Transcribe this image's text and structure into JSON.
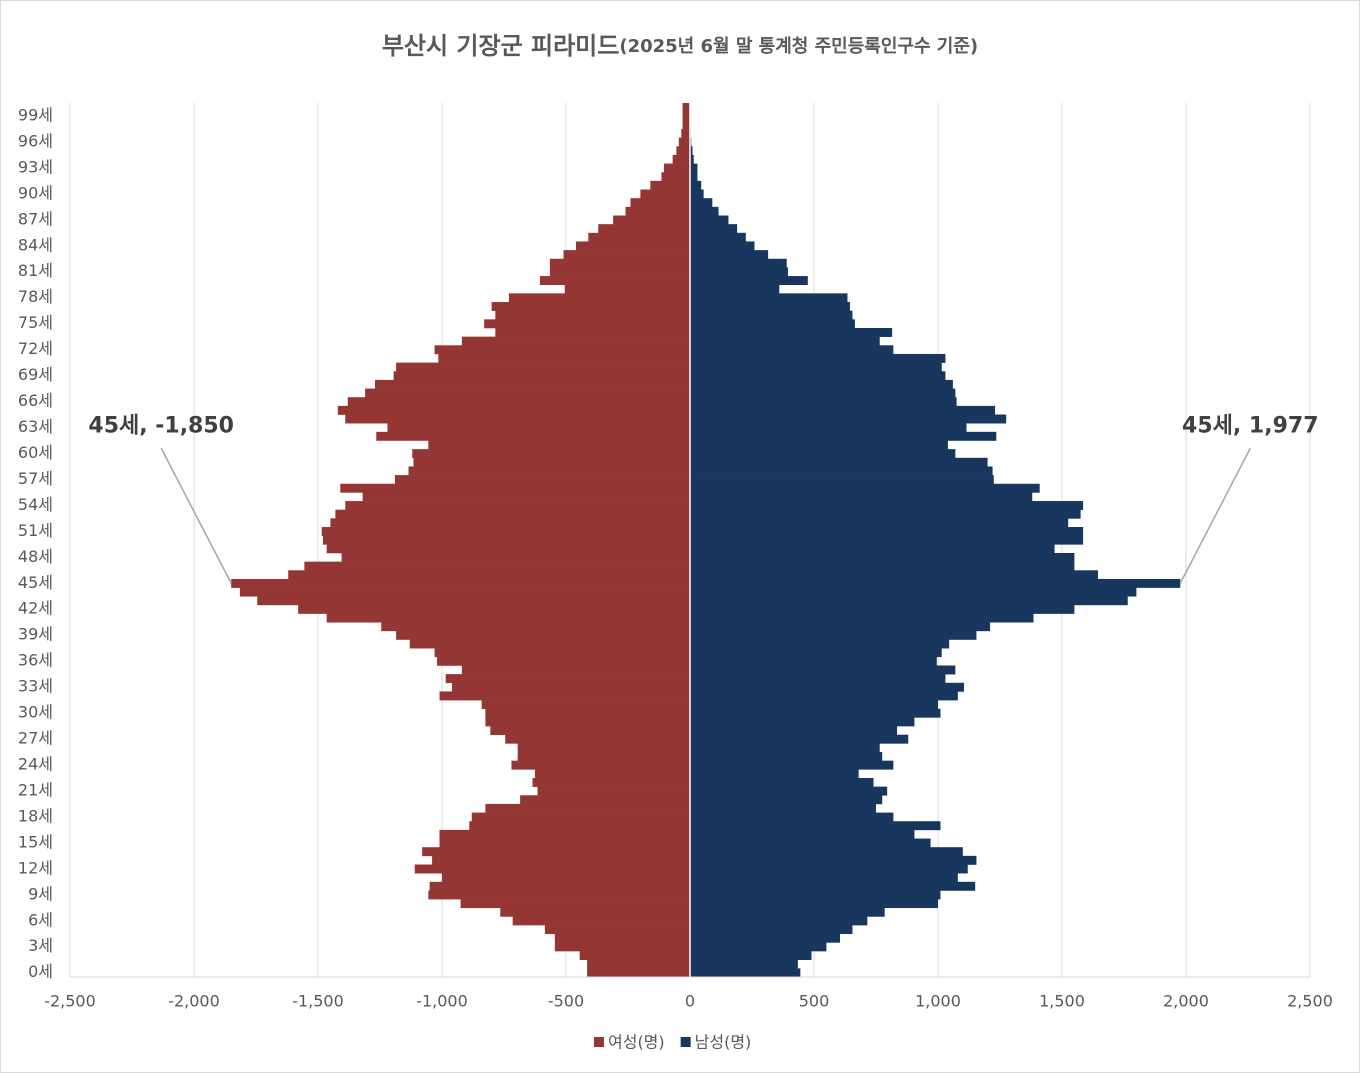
{
  "chart_data": {
    "type": "pyramid",
    "title": "부산시 기장군 피라미드",
    "subtitle": "(2025년 6월 말 통계청 주민등록인구수 기준)",
    "categories": [
      "0세",
      null,
      null,
      "3세",
      null,
      null,
      "6세",
      null,
      null,
      "9세",
      null,
      null,
      "12세",
      null,
      null,
      "15세",
      null,
      null,
      "18세",
      null,
      null,
      "21세",
      null,
      null,
      "24세",
      null,
      null,
      "27세",
      null,
      null,
      "30세",
      null,
      null,
      "33세",
      null,
      null,
      "36세",
      null,
      null,
      "39세",
      null,
      null,
      "42세",
      null,
      null,
      "45세",
      null,
      null,
      "48세",
      null,
      null,
      "51세",
      null,
      null,
      "54세",
      null,
      null,
      "57세",
      null,
      null,
      "60세",
      null,
      null,
      "63세",
      null,
      null,
      "66세",
      null,
      null,
      "69세",
      null,
      null,
      "72세",
      null,
      null,
      "75세",
      null,
      null,
      "78세",
      null,
      null,
      "81세",
      null,
      null,
      "84세",
      null,
      null,
      "87세",
      null,
      null,
      "90세",
      null,
      null,
      "93세",
      null,
      null,
      "96세",
      null,
      null,
      "99세",
      null
    ],
    "series": [
      {
        "name": "여성(명)",
        "color": "#943634",
        "values": [
          -415,
          -415,
          -445,
          -545,
          -545,
          -585,
          -715,
          -765,
          -925,
          -1055,
          -1050,
          -1000,
          -1110,
          -1040,
          -1080,
          -1010,
          -1010,
          -890,
          -880,
          -825,
          -685,
          -615,
          -635,
          -625,
          -720,
          -695,
          -695,
          -745,
          -805,
          -825,
          -825,
          -840,
          -1010,
          -960,
          -985,
          -920,
          -1020,
          -1030,
          -1130,
          -1185,
          -1245,
          -1465,
          -1580,
          -1745,
          -1815,
          -1850,
          -1620,
          -1555,
          -1405,
          -1465,
          -1480,
          -1485,
          -1450,
          -1430,
          -1390,
          -1320,
          -1410,
          -1190,
          -1135,
          -1115,
          -1120,
          -1055,
          -1265,
          -1220,
          -1390,
          -1420,
          -1380,
          -1310,
          -1270,
          -1195,
          -1185,
          -1015,
          -1030,
          -920,
          -785,
          -830,
          -785,
          -800,
          -730,
          -505,
          -605,
          -565,
          -565,
          -510,
          -460,
          -410,
          -370,
          -310,
          -260,
          -240,
          -200,
          -160,
          -115,
          -105,
          -70,
          -55,
          -45,
          -35,
          -30,
          -30,
          -30
        ],
        "value_labels": [
          null,
          null,
          null,
          null,
          null,
          null,
          null,
          null,
          null,
          null,
          null,
          null,
          null,
          null,
          null,
          null,
          null,
          null,
          null,
          null,
          null,
          null,
          null,
          null,
          null,
          null,
          null,
          null,
          null,
          null,
          null,
          null,
          null,
          null,
          null,
          null,
          null,
          null,
          null,
          null,
          null,
          null,
          null,
          null,
          null,
          "45세, -1,850",
          null,
          null,
          null,
          null,
          null,
          null,
          null,
          null,
          null,
          null,
          null,
          null,
          null,
          null,
          null,
          null,
          null,
          null,
          null,
          null,
          null,
          null,
          null,
          null,
          null,
          null,
          null,
          null,
          null,
          null,
          null,
          null,
          null,
          null,
          null,
          null,
          null,
          null,
          null,
          null,
          null,
          null,
          null,
          null,
          null,
          null,
          null,
          null,
          null,
          null,
          null,
          null,
          null,
          null,
          null
        ]
      },
      {
        "name": "남성(명)",
        "color": "#17375e",
        "values": [
          445,
          435,
          490,
          550,
          605,
          655,
          715,
          785,
          1000,
          1010,
          1150,
          1080,
          1120,
          1155,
          1100,
          970,
          905,
          1010,
          820,
          750,
          775,
          795,
          740,
          680,
          820,
          775,
          765,
          880,
          835,
          905,
          1010,
          1000,
          1080,
          1105,
          1030,
          1070,
          995,
          1015,
          1045,
          1155,
          1210,
          1385,
          1550,
          1765,
          1800,
          1977,
          1645,
          1550,
          1550,
          1470,
          1585,
          1585,
          1525,
          1575,
          1585,
          1380,
          1410,
          1225,
          1220,
          1200,
          1070,
          1040,
          1235,
          1115,
          1275,
          1230,
          1075,
          1070,
          1060,
          1030,
          1015,
          1030,
          820,
          765,
          815,
          665,
          655,
          645,
          635,
          360,
          475,
          395,
          390,
          315,
          260,
          225,
          190,
          155,
          115,
          90,
          55,
          45,
          30,
          30,
          15,
          10,
          5,
          3,
          2,
          1,
          1
        ],
        "value_labels": [
          null,
          null,
          null,
          null,
          null,
          null,
          null,
          null,
          null,
          null,
          null,
          null,
          null,
          null,
          null,
          null,
          null,
          null,
          null,
          null,
          null,
          null,
          null,
          null,
          null,
          null,
          null,
          null,
          null,
          null,
          null,
          null,
          null,
          null,
          null,
          null,
          null,
          null,
          null,
          null,
          null,
          null,
          null,
          null,
          null,
          "45세, 1,977",
          null,
          null,
          null,
          null,
          null,
          null,
          null,
          null,
          null,
          null,
          null,
          null,
          null,
          null,
          null,
          null,
          null,
          null,
          null,
          null,
          null,
          null,
          null,
          null,
          null,
          null,
          null,
          null,
          null,
          null,
          null,
          null,
          null,
          null,
          null,
          null,
          null,
          null,
          null,
          null,
          null,
          null,
          null,
          null,
          null,
          null,
          null,
          null,
          null,
          null,
          null,
          null,
          null,
          null,
          null
        ]
      }
    ],
    "xlim": [
      -2500,
      2500
    ],
    "xticks": [
      {
        "value": -2500,
        "label": "-2,500"
      },
      {
        "value": -2000,
        "label": "-2,000"
      },
      {
        "value": -1500,
        "label": "-1,500"
      },
      {
        "value": -1000,
        "label": "-1,000"
      },
      -500,
      0,
      500,
      {
        "value": 1000,
        "label": "1,000"
      },
      {
        "value": 1500,
        "label": "1,500"
      },
      {
        "value": 2000,
        "label": "2,000"
      },
      {
        "value": 2500,
        "label": "2,500"
      }
    ],
    "grid": true,
    "legend": "bottom"
  }
}
